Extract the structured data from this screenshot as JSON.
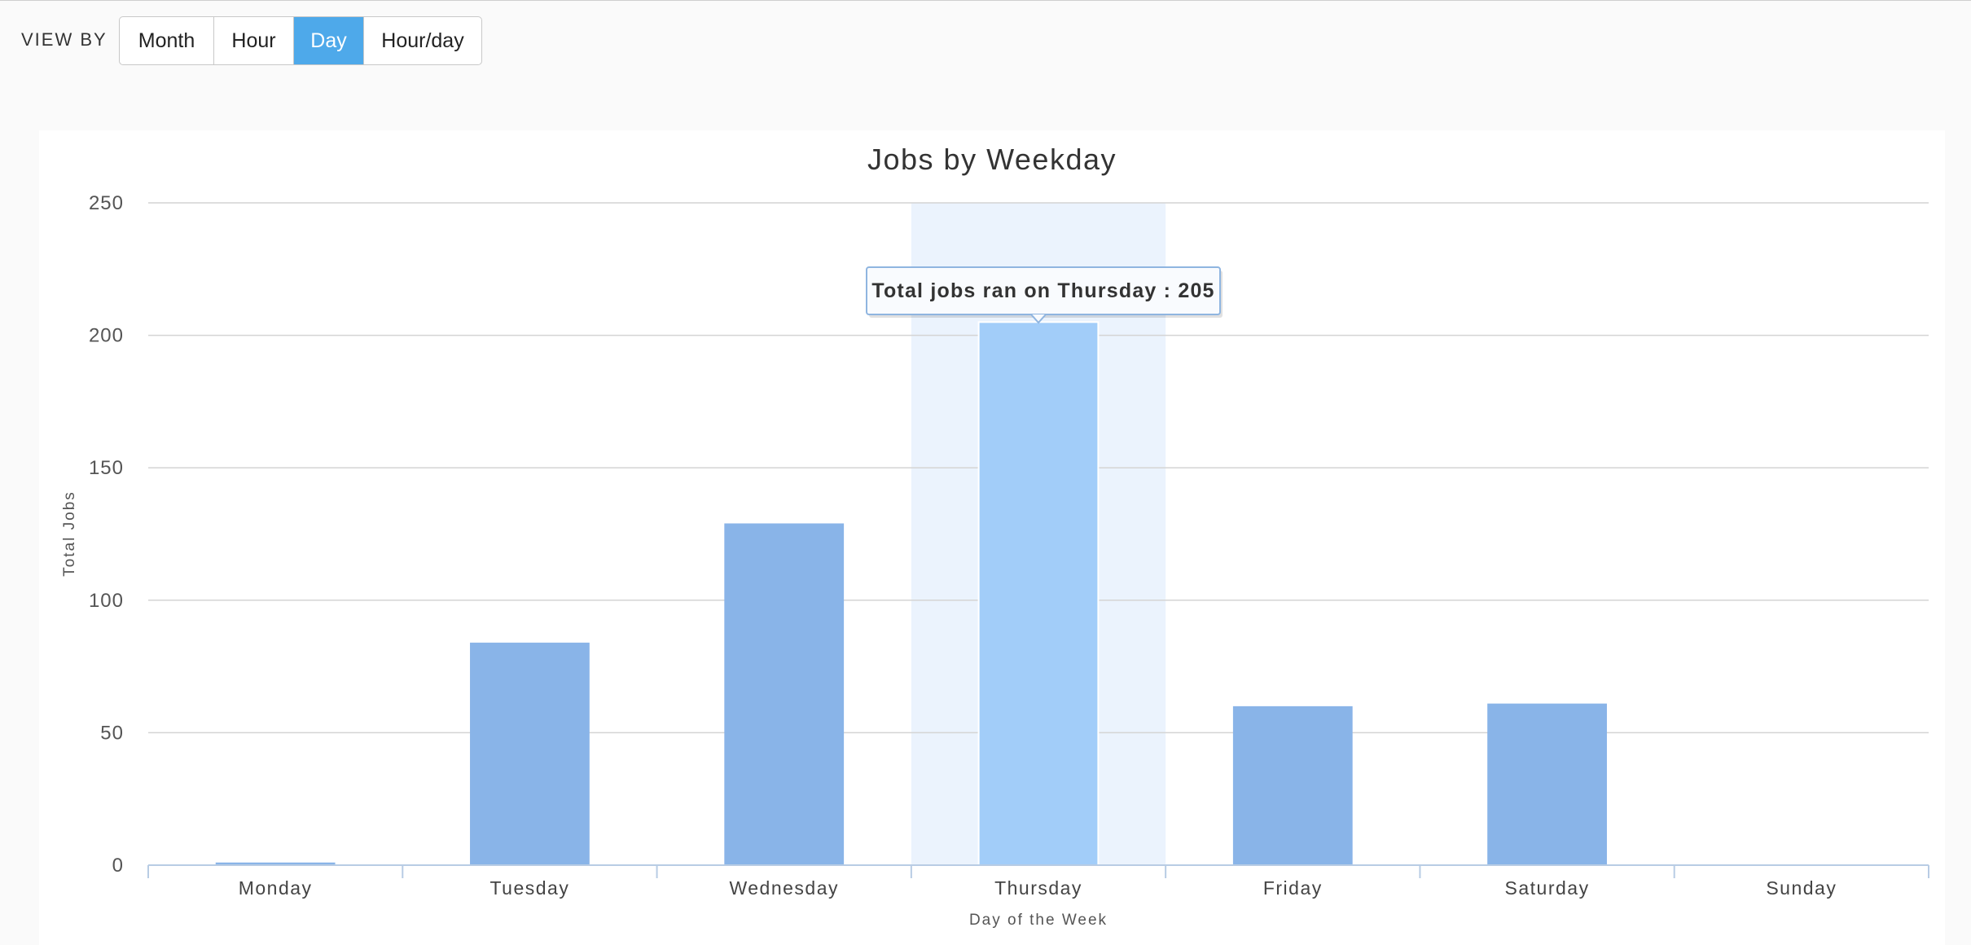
{
  "toolbar": {
    "view_by_label": "VIEW BY",
    "buttons": [
      {
        "label": "Month",
        "active": false
      },
      {
        "label": "Hour",
        "active": false
      },
      {
        "label": "Day",
        "active": true
      },
      {
        "label": "Hour/day",
        "active": false
      }
    ]
  },
  "colors": {
    "bar": "#89b4e8",
    "bar_hover": "#a2cdf9",
    "highlight_band": "#ebf3fd",
    "active_button": "#4ea9ea"
  },
  "chart_data": {
    "type": "bar",
    "title": "Jobs by Weekday",
    "xlabel": "Day of the Week",
    "ylabel": "Total Jobs",
    "categories": [
      "Monday",
      "Tuesday",
      "Wednesday",
      "Thursday",
      "Friday",
      "Saturday",
      "Sunday"
    ],
    "values": [
      1,
      84,
      129,
      205,
      60,
      61,
      0
    ],
    "ylim": [
      0,
      250
    ],
    "yticks": [
      0,
      50,
      100,
      150,
      200,
      250
    ],
    "grid": true,
    "highlighted_category": "Thursday",
    "tooltip": {
      "text": "Total jobs ran on Thursday : 205"
    }
  }
}
